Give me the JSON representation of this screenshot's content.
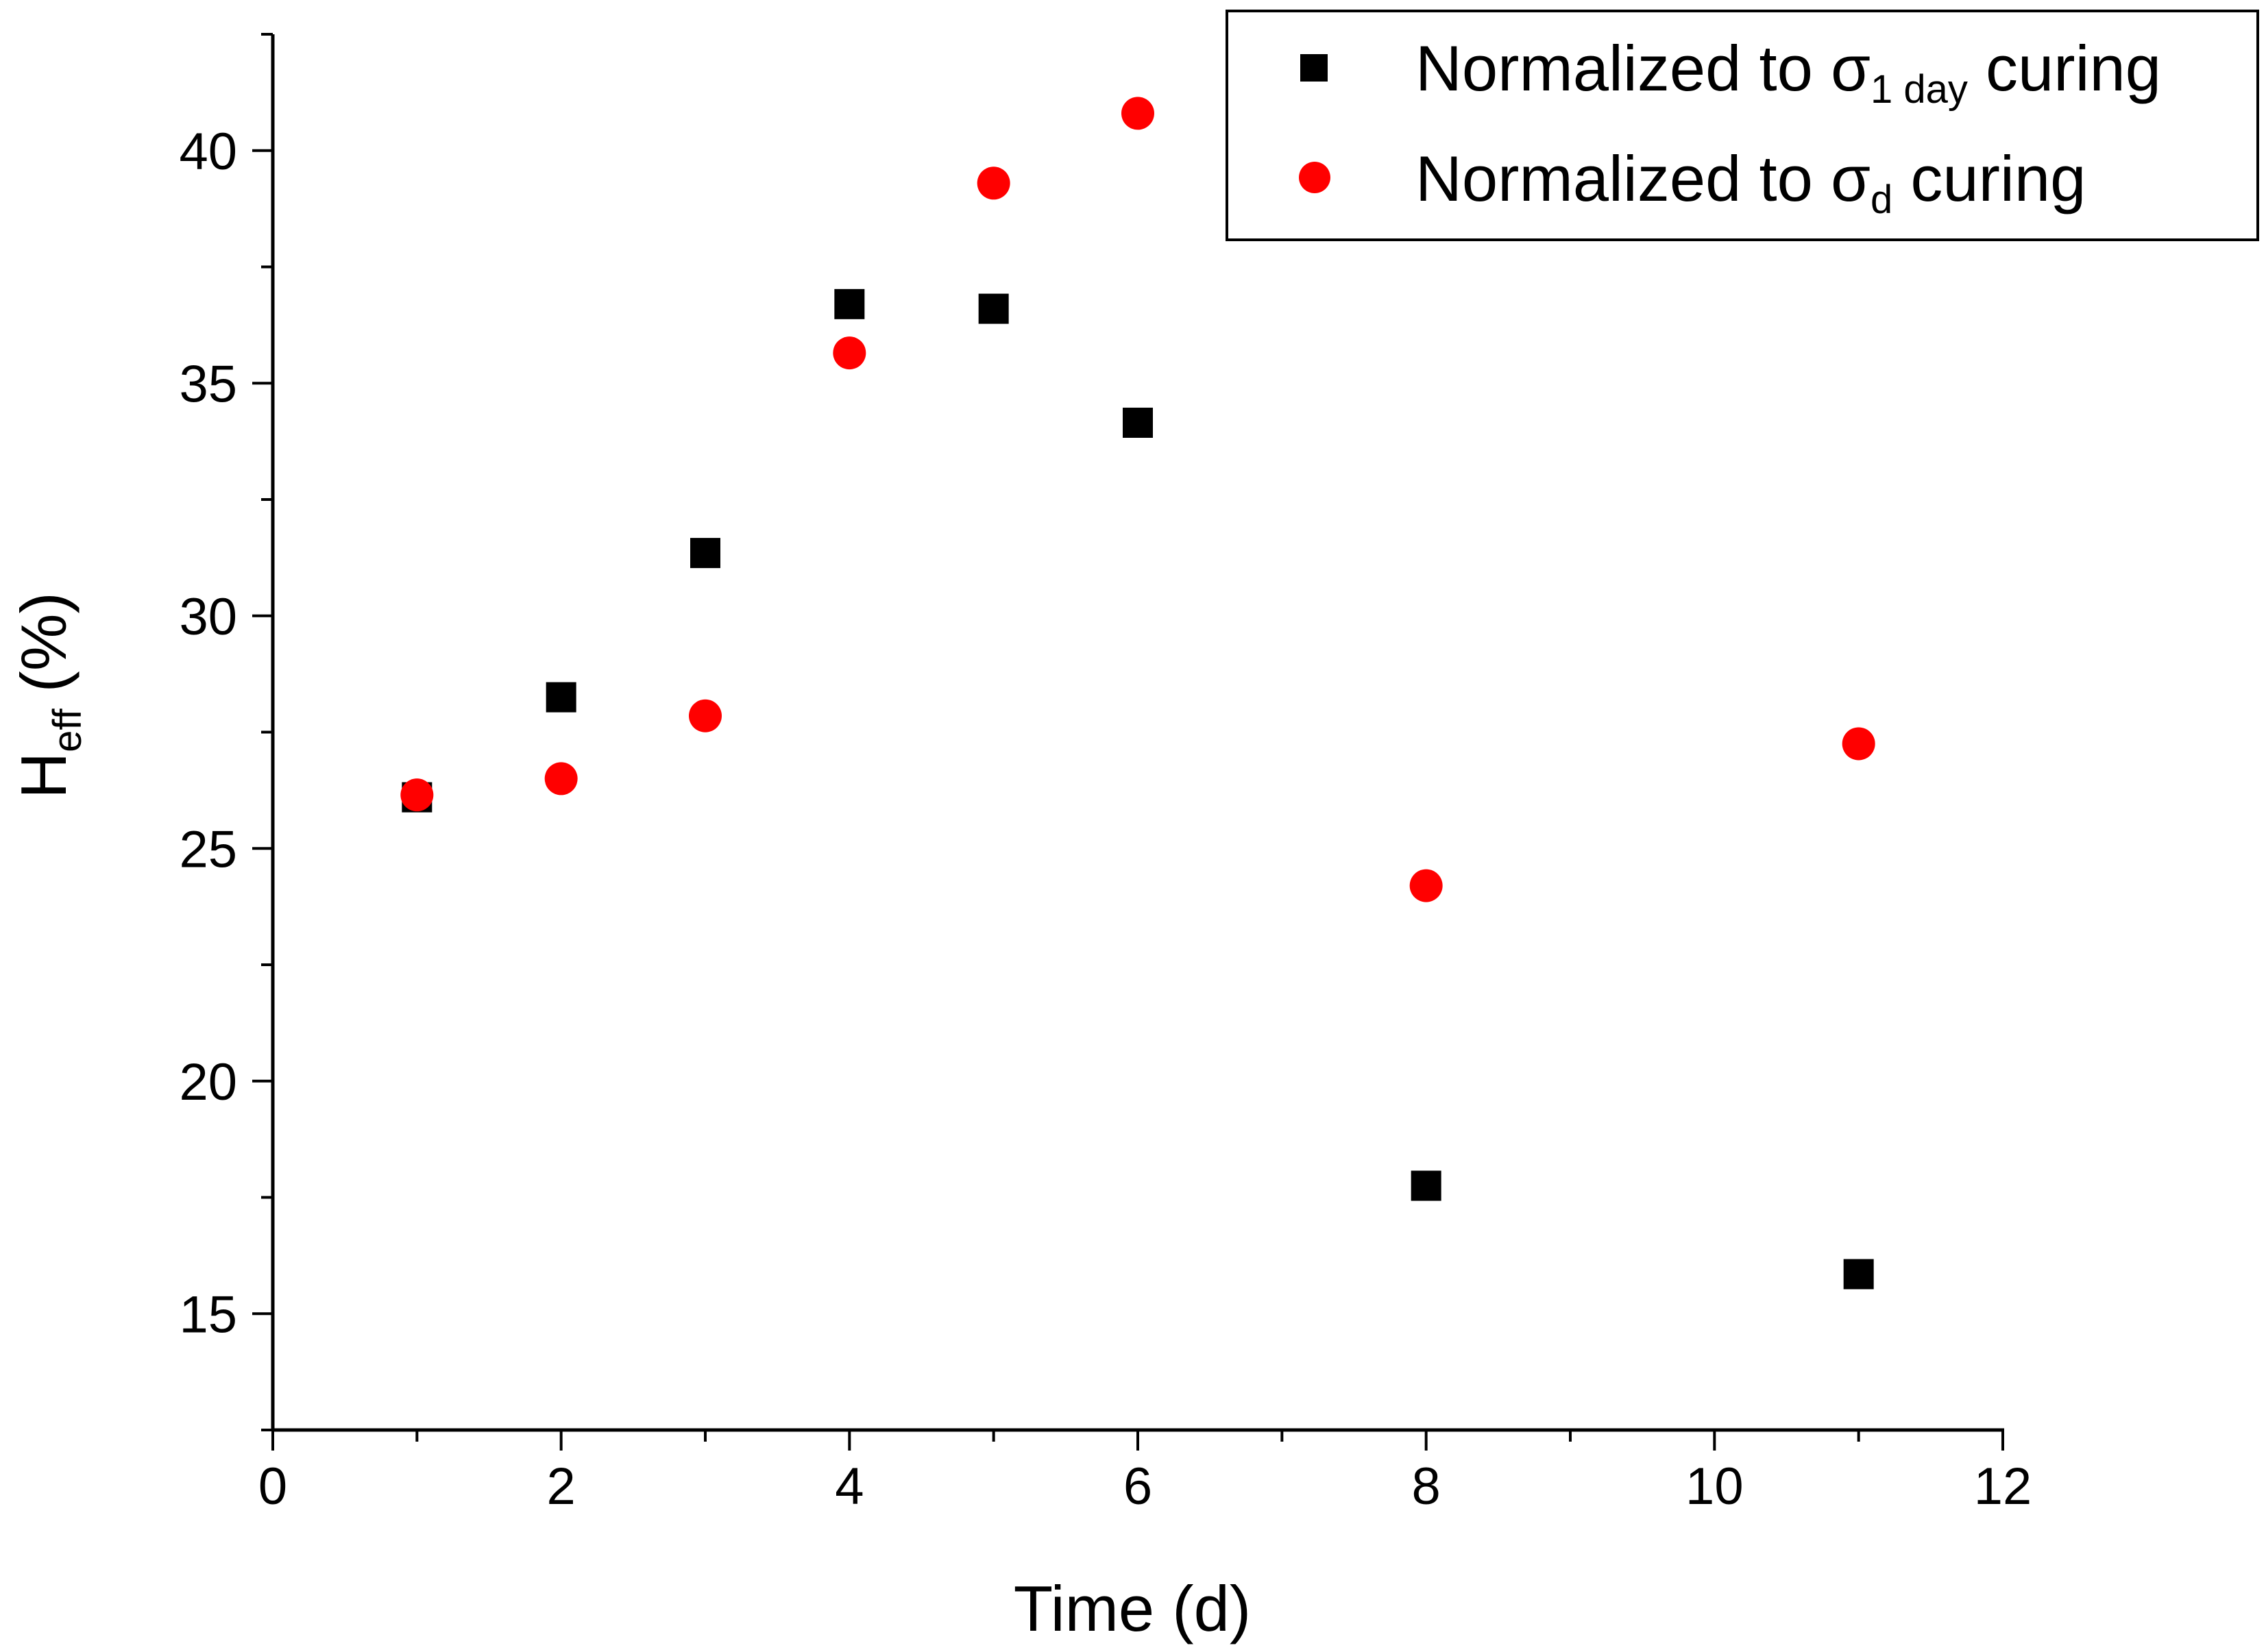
{
  "chart_data": {
    "type": "scatter",
    "title": "",
    "xlabel": "Time (d)",
    "ylabel": {
      "main": "H",
      "subscript": "eff",
      "unit": "(%)"
    },
    "xlim": [
      0,
      12
    ],
    "ylim": [
      12.5,
      42.5
    ],
    "x_ticks": [
      0,
      2,
      4,
      6,
      8,
      10,
      12
    ],
    "y_ticks": [
      15,
      20,
      25,
      30,
      35,
      40
    ],
    "grid": false,
    "legend_position": "top-right",
    "series": [
      {
        "name": "Normalized to σ1 day curing",
        "legend": {
          "prefix": "Normalized to σ",
          "subscript": "1 day",
          "suffix": " curing"
        },
        "marker": "square",
        "color": "#000000",
        "x": [
          1,
          2,
          3,
          4,
          5,
          6,
          8,
          11
        ],
        "y": [
          26.1,
          28.25,
          31.35,
          36.7,
          36.6,
          34.15,
          17.75,
          15.85
        ]
      },
      {
        "name": "Normalized to σd curing",
        "legend": {
          "prefix": "Normalized to σ",
          "subscript": "d",
          "suffix": " curing"
        },
        "marker": "circle",
        "color": "#ff0000",
        "x": [
          1,
          2,
          3,
          4,
          5,
          6,
          8,
          11
        ],
        "y": [
          26.15,
          26.5,
          27.85,
          35.65,
          39.3,
          40.8,
          24.2,
          27.25
        ]
      }
    ]
  }
}
